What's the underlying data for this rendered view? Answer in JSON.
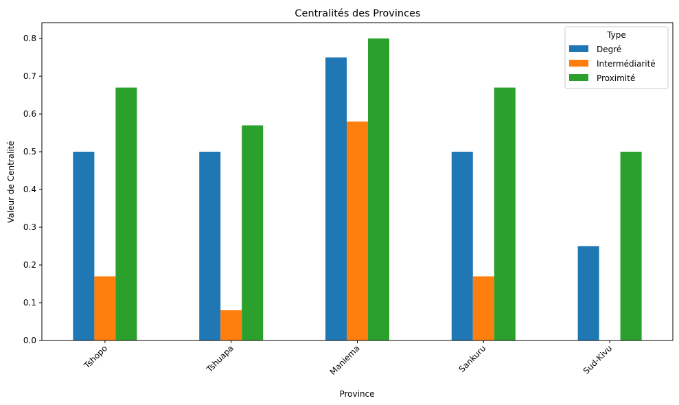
{
  "chart_data": {
    "type": "bar",
    "title": "Centralités des Provinces",
    "xlabel": "Province",
    "ylabel": "Valeur de Centralité",
    "categories": [
      "Tshopo",
      "Tshuapa",
      "Maniema",
      "Sankuru",
      "Sud-Kivu"
    ],
    "series": [
      {
        "name": "Degré",
        "values": [
          0.5,
          0.5,
          0.75,
          0.5,
          0.25
        ],
        "color": "#1f77b4"
      },
      {
        "name": "Intermédiarité",
        "values": [
          0.17,
          0.08,
          0.58,
          0.17,
          0.0
        ],
        "color": "#ff7f0e"
      },
      {
        "name": "Proximité",
        "values": [
          0.67,
          0.57,
          0.8,
          0.67,
          0.5
        ],
        "color": "#2ca02c"
      }
    ],
    "ylim": [
      0,
      0.842
    ],
    "yticks": [
      "0.0",
      "0.1",
      "0.2",
      "0.3",
      "0.4",
      "0.5",
      "0.6",
      "0.7",
      "0.8"
    ],
    "legend_title": "Type",
    "legend_position": "top-right",
    "grid": false
  }
}
